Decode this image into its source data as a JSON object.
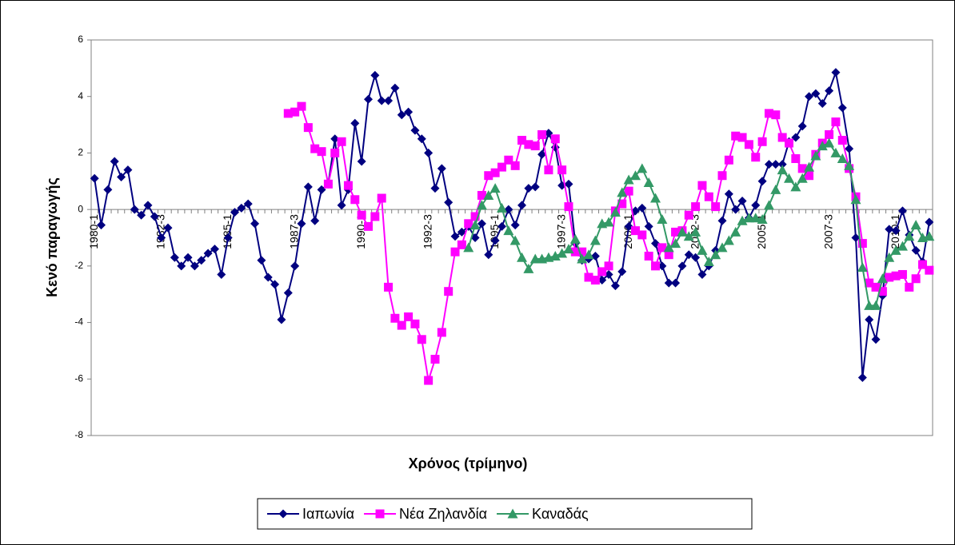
{
  "chart_data": {
    "type": "line",
    "x_label": "Χρόνος (τρίμηνο)",
    "y_label": "Κενό παραγωγής",
    "categories": [
      "1980-1",
      null,
      null,
      null,
      null,
      null,
      null,
      null,
      null,
      null,
      "1982-3",
      null,
      null,
      null,
      null,
      null,
      null,
      null,
      null,
      null,
      "1985-1",
      null,
      null,
      null,
      null,
      null,
      null,
      null,
      null,
      null,
      "1987-3",
      null,
      null,
      null,
      null,
      null,
      null,
      null,
      null,
      null,
      "1990-1",
      null,
      null,
      null,
      null,
      null,
      null,
      null,
      null,
      null,
      "1992-3",
      null,
      null,
      null,
      null,
      null,
      null,
      null,
      null,
      null,
      "1995-1",
      null,
      null,
      null,
      null,
      null,
      null,
      null,
      null,
      null,
      "1997-3",
      null,
      null,
      null,
      null,
      null,
      null,
      null,
      null,
      null,
      "2000-1",
      null,
      null,
      null,
      null,
      null,
      null,
      null,
      null,
      null,
      "2002-3",
      null,
      null,
      null,
      null,
      null,
      null,
      null,
      null,
      null,
      "2005-1",
      null,
      null,
      null,
      null,
      null,
      null,
      null,
      null,
      null,
      "2007-3",
      null,
      null,
      null,
      null,
      null,
      null,
      null,
      null,
      null,
      "2010-1",
      null,
      null,
      null,
      null,
      null
    ],
    "series": [
      {
        "name": "Ιαπωνία",
        "color": "#000080",
        "marker": "diamond",
        "values": [
          1.1,
          -0.55,
          0.7,
          1.7,
          1.15,
          1.4,
          0,
          -0.2,
          0.15,
          -0.25,
          -1.0,
          -0.65,
          -1.7,
          -2.0,
          -1.7,
          -2.0,
          -1.8,
          -1.55,
          -1.4,
          -2.3,
          -1.0,
          -0.1,
          0.05,
          0.2,
          -0.5,
          -1.8,
          -2.4,
          -2.65,
          -3.9,
          -2.95,
          -2.0,
          -0.5,
          0.8,
          -0.4,
          0.7,
          0.9,
          2.5,
          0.15,
          0.7,
          3.05,
          1.7,
          3.9,
          4.75,
          3.85,
          3.85,
          4.3,
          3.35,
          3.45,
          2.8,
          2.5,
          2.0,
          0.75,
          1.45,
          0.25,
          -0.95,
          -0.8,
          -0.6,
          -1.0,
          -0.5,
          -1.6,
          -1.1,
          -0.6,
          0.0,
          -0.55,
          0.15,
          0.75,
          0.8,
          1.95,
          2.7,
          2.2,
          0.85,
          0.9,
          -1.2,
          -1.8,
          -1.75,
          -1.65,
          -2.5,
          -2.3,
          -2.7,
          -2.2,
          -0.6,
          -0.05,
          0.05,
          -0.6,
          -1.2,
          -2.0,
          -2.6,
          -2.6,
          -2.0,
          -1.6,
          -1.7,
          -2.3,
          -2.0,
          -1.45,
          -0.4,
          0.55,
          0.0,
          0.3,
          -0.3,
          0.15,
          1.0,
          1.6,
          1.6,
          1.6,
          2.4,
          2.55,
          2.95,
          4.0,
          4.1,
          3.75,
          4.2,
          4.85,
          3.6,
          2.15,
          -1.0,
          -5.95,
          -3.9,
          -4.6,
          -3.05,
          -0.7,
          -0.75,
          -0.05,
          -0.9,
          -1.45,
          -1.85,
          -0.45
        ]
      },
      {
        "name": "Νέα Ζηλανδία",
        "color": "#ff00ff",
        "marker": "square",
        "values": [
          null,
          null,
          null,
          null,
          null,
          null,
          null,
          null,
          null,
          null,
          null,
          null,
          null,
          null,
          null,
          null,
          null,
          null,
          null,
          null,
          null,
          null,
          null,
          null,
          null,
          null,
          null,
          null,
          null,
          3.4,
          3.45,
          3.65,
          2.9,
          2.15,
          2.05,
          0.9,
          2.0,
          2.4,
          0.85,
          0.35,
          -0.2,
          -0.6,
          -0.25,
          0.4,
          -2.75,
          -3.85,
          -4.1,
          -3.8,
          -4.05,
          -4.6,
          -6.05,
          -5.3,
          -4.35,
          -2.9,
          -1.5,
          -1.25,
          -0.5,
          -0.25,
          0.5,
          1.2,
          1.3,
          1.5,
          1.75,
          1.55,
          2.45,
          2.3,
          2.25,
          2.65,
          1.4,
          2.5,
          1.4,
          0.1,
          -1.5,
          -1.5,
          -2.4,
          -2.5,
          -2.2,
          -2.0,
          -0.05,
          0.2,
          0.65,
          -0.75,
          -0.9,
          -1.65,
          -2.0,
          -1.35,
          -1.6,
          -0.8,
          -0.75,
          -0.2,
          0.1,
          0.85,
          0.45,
          0.1,
          1.2,
          1.75,
          2.6,
          2.55,
          2.3,
          1.85,
          2.4,
          3.4,
          3.35,
          2.55,
          2.35,
          1.8,
          1.45,
          1.2,
          1.95,
          2.35,
          2.65,
          3.1,
          2.45,
          1.45,
          0.45,
          -1.2,
          -2.6,
          -2.75,
          -2.9,
          -2.4,
          -2.35,
          -2.3,
          -2.75,
          -2.45,
          -1.95,
          -2.15
        ]
      },
      {
        "name": "Καναδάς",
        "color": "#339966",
        "marker": "triangle",
        "values": [
          null,
          null,
          null,
          null,
          null,
          null,
          null,
          null,
          null,
          null,
          null,
          null,
          null,
          null,
          null,
          null,
          null,
          null,
          null,
          null,
          null,
          null,
          null,
          null,
          null,
          null,
          null,
          null,
          null,
          null,
          null,
          null,
          null,
          null,
          null,
          null,
          null,
          null,
          null,
          null,
          null,
          null,
          null,
          null,
          null,
          null,
          null,
          null,
          null,
          null,
          null,
          null,
          null,
          null,
          null,
          null,
          -1.35,
          -0.55,
          0.15,
          0.5,
          0.75,
          0.05,
          -0.75,
          -1.1,
          -1.7,
          -2.1,
          -1.75,
          -1.75,
          -1.7,
          -1.65,
          -1.55,
          -1.4,
          -1.05,
          -1.75,
          -1.6,
          -1.1,
          -0.5,
          -0.45,
          -0.1,
          0.6,
          1.05,
          1.2,
          1.45,
          0.95,
          0.4,
          -0.35,
          -1.35,
          -1.2,
          -0.8,
          -0.95,
          -0.8,
          -1.45,
          -1.85,
          -1.6,
          -1.35,
          -1.1,
          -0.8,
          -0.4,
          -0.3,
          -0.3,
          -0.35,
          0.15,
          0.7,
          1.4,
          1.1,
          0.8,
          1.1,
          1.5,
          1.9,
          2.25,
          2.35,
          2.0,
          1.8,
          1.55,
          0.35,
          -2.05,
          -3.4,
          -3.4,
          -2.45,
          -1.7,
          -1.45,
          -1.3,
          -0.95,
          -0.55,
          -1.0,
          -0.95
        ]
      }
    ],
    "ylim": [
      -8,
      6
    ],
    "yticks": [
      -8,
      -6,
      -4,
      -2,
      0,
      2,
      4,
      6
    ],
    "grid": false,
    "legend": "bottom"
  }
}
